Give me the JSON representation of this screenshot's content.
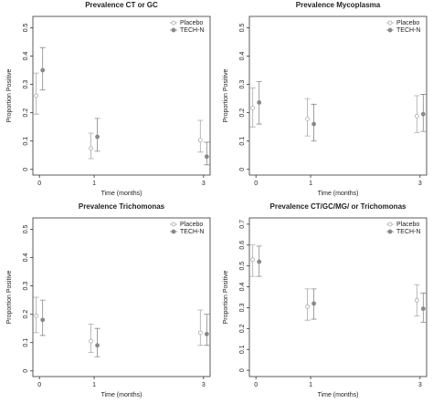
{
  "chart_data": [
    {
      "type": "errorbar",
      "title": "Prevalence CT or GC",
      "x_label": "Time (months)",
      "y_label": "Proportion Positive",
      "x": [
        0,
        1,
        3
      ],
      "xlim": [
        -0.12,
        3.12
      ],
      "xticks": [
        0,
        1,
        3
      ],
      "ylim": [
        -0.02,
        0.54
      ],
      "yticks": [
        0,
        0.1,
        0.2,
        0.3,
        0.4,
        0.5
      ],
      "legend": "top-right",
      "series": [
        {
          "name": "Placebo",
          "color": "#aaaaaa",
          "marker": "open",
          "values": [
            0.26,
            0.074,
            0.103
          ],
          "lower": [
            0.195,
            0.038,
            0.061
          ],
          "upper": [
            0.34,
            0.128,
            0.173
          ]
        },
        {
          "name": "TECH-N",
          "color": "#888888",
          "marker": "filled",
          "values": [
            0.35,
            0.115,
            0.045
          ],
          "lower": [
            0.28,
            0.064,
            0.016
          ],
          "upper": [
            0.43,
            0.18,
            0.096
          ]
        }
      ]
    },
    {
      "type": "errorbar",
      "title": "Prevalence Mycoplasma",
      "x_label": "Time (months)",
      "y_label": "Proportion Positive",
      "x": [
        0,
        1,
        3
      ],
      "xlim": [
        -0.12,
        3.12
      ],
      "xticks": [
        0,
        1,
        3
      ],
      "ylim": [
        -0.02,
        0.54
      ],
      "yticks": [
        0,
        0.1,
        0.2,
        0.3,
        0.4,
        0.5
      ],
      "legend": "top-right",
      "series": [
        {
          "name": "Placebo",
          "color": "#aaaaaa",
          "marker": "open",
          "values": [
            0.217,
            0.178,
            0.188
          ],
          "lower": [
            0.15,
            0.118,
            0.13
          ],
          "upper": [
            0.287,
            0.25,
            0.26
          ]
        },
        {
          "name": "TECH-N",
          "color": "#888888",
          "marker": "filled",
          "values": [
            0.236,
            0.16,
            0.195
          ],
          "lower": [
            0.16,
            0.1,
            0.134
          ],
          "upper": [
            0.31,
            0.23,
            0.265
          ]
        }
      ]
    },
    {
      "type": "errorbar",
      "title": "Prevalence Trichomonas",
      "x_label": "Time (months)",
      "y_label": "Proportion Positive",
      "x": [
        0,
        1,
        3
      ],
      "xlim": [
        -0.12,
        3.12
      ],
      "xticks": [
        0,
        1,
        3
      ],
      "ylim": [
        -0.02,
        0.54
      ],
      "yticks": [
        0,
        0.1,
        0.2,
        0.3,
        0.4,
        0.5
      ],
      "legend": "top-right",
      "series": [
        {
          "name": "Placebo",
          "color": "#aaaaaa",
          "marker": "open",
          "values": [
            0.195,
            0.105,
            0.135
          ],
          "lower": [
            0.135,
            0.065,
            0.09
          ],
          "upper": [
            0.26,
            0.165,
            0.215
          ]
        },
        {
          "name": "TECH-N",
          "color": "#888888",
          "marker": "filled",
          "values": [
            0.18,
            0.09,
            0.13
          ],
          "lower": [
            0.125,
            0.05,
            0.09
          ],
          "upper": [
            0.25,
            0.15,
            0.2
          ]
        }
      ]
    },
    {
      "type": "errorbar",
      "title": "Prevalence CT/GC/MG/ or Trichomonas",
      "x_label": "Time (months)",
      "y_label": "Proportion Positive",
      "x": [
        0,
        1,
        3
      ],
      "xlim": [
        -0.12,
        3.12
      ],
      "xticks": [
        0,
        1,
        3
      ],
      "ylim": [
        -0.03,
        0.73
      ],
      "yticks": [
        0,
        0.1,
        0.2,
        0.3,
        0.4,
        0.5,
        0.6,
        0.7
      ],
      "legend": "top-right",
      "series": [
        {
          "name": "Placebo",
          "color": "#aaaaaa",
          "marker": "open",
          "values": [
            0.53,
            0.305,
            0.335
          ],
          "lower": [
            0.45,
            0.24,
            0.26
          ],
          "upper": [
            0.6,
            0.39,
            0.41
          ]
        },
        {
          "name": "TECH-N",
          "color": "#888888",
          "marker": "filled",
          "values": [
            0.52,
            0.32,
            0.295
          ],
          "lower": [
            0.45,
            0.245,
            0.23
          ],
          "upper": [
            0.595,
            0.39,
            0.37
          ]
        }
      ]
    }
  ]
}
